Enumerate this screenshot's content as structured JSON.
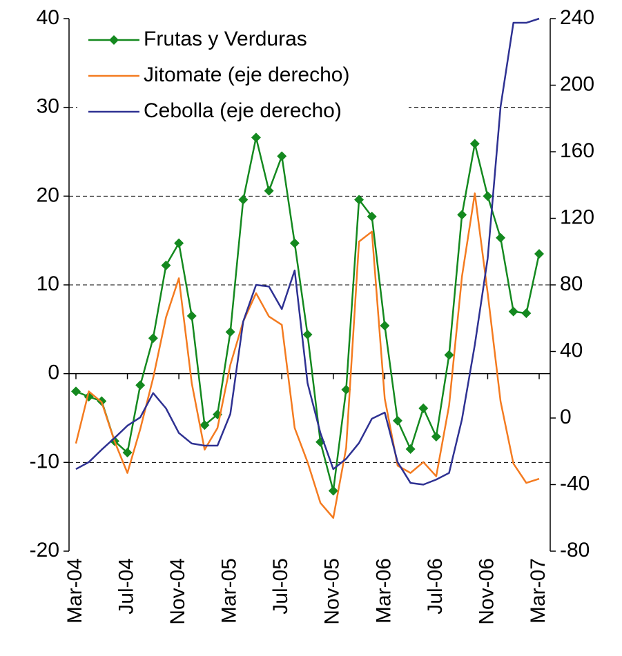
{
  "chart_data": {
    "type": "line",
    "categories": [
      "Mar-04",
      null,
      null,
      null,
      "Jul-04",
      null,
      null,
      null,
      "Nov-04",
      null,
      null,
      null,
      "Mar-05",
      null,
      null,
      null,
      "Jul-05",
      null,
      null,
      null,
      "Nov-05",
      null,
      null,
      null,
      "Mar-06",
      null,
      null,
      null,
      "Jul-06",
      null,
      null,
      null,
      "Nov-06",
      null,
      null,
      null,
      "Mar-07"
    ],
    "series": [
      {
        "name": "Frutas y Verduras",
        "color": "#14891f",
        "marker": "diamond",
        "values": [
          -2.0,
          -2.6,
          -3.1,
          -7.6,
          -8.9,
          -1.3,
          4.0,
          12.2,
          14.7,
          6.5,
          -5.8,
          -4.6,
          4.7,
          19.6,
          26.6,
          20.6,
          24.5,
          14.7,
          4.4,
          -7.7,
          -13.2,
          -1.8,
          19.6,
          17.7,
          5.4,
          -5.3,
          -8.5,
          -3.9,
          -7.1,
          2.1,
          17.9,
          25.9,
          20.0,
          15.3,
          7.0,
          6.8,
          13.5
        ]
      },
      {
        "name": "Jitomate (eje derecho)",
        "color": "#f47b20",
        "axis": "y2",
        "values": [
          -15.3,
          16,
          9.5,
          -14,
          -33,
          -6.6,
          24,
          60.5,
          84,
          21,
          -19,
          -6,
          32,
          58,
          75,
          61,
          56,
          -6,
          -26.5,
          -51,
          -60,
          -18,
          106,
          112,
          11.6,
          -28.6,
          -33,
          -26.5,
          -35,
          7.5,
          85,
          135,
          75,
          10,
          -27.4,
          -39,
          -36.5
        ]
      },
      {
        "name": "Cebolla (eje derecho)",
        "color": "#2e3192",
        "axis": "y2",
        "values": [
          -30.7,
          -26.5,
          -19,
          -12,
          -4.6,
          0.4,
          15,
          5.8,
          -9,
          -15.3,
          -16.6,
          -16.6,
          2.5,
          58,
          80,
          79,
          65.5,
          88.7,
          21,
          -9,
          -30.7,
          -24.5,
          -15,
          -0.4,
          3.3,
          -26.5,
          -39,
          -40,
          -37,
          -33,
          -0.8,
          44,
          96,
          187,
          237.5,
          237.5,
          240
        ]
      }
    ],
    "ylim": [
      -20,
      40
    ],
    "yticks": [
      -20,
      -10,
      0,
      10,
      20,
      30,
      40
    ],
    "y2lim": [
      -80,
      240
    ],
    "y2ticks": [
      -80,
      -40,
      0,
      40,
      80,
      120,
      160,
      200,
      240
    ],
    "grid": true,
    "legend": "upper-left"
  }
}
